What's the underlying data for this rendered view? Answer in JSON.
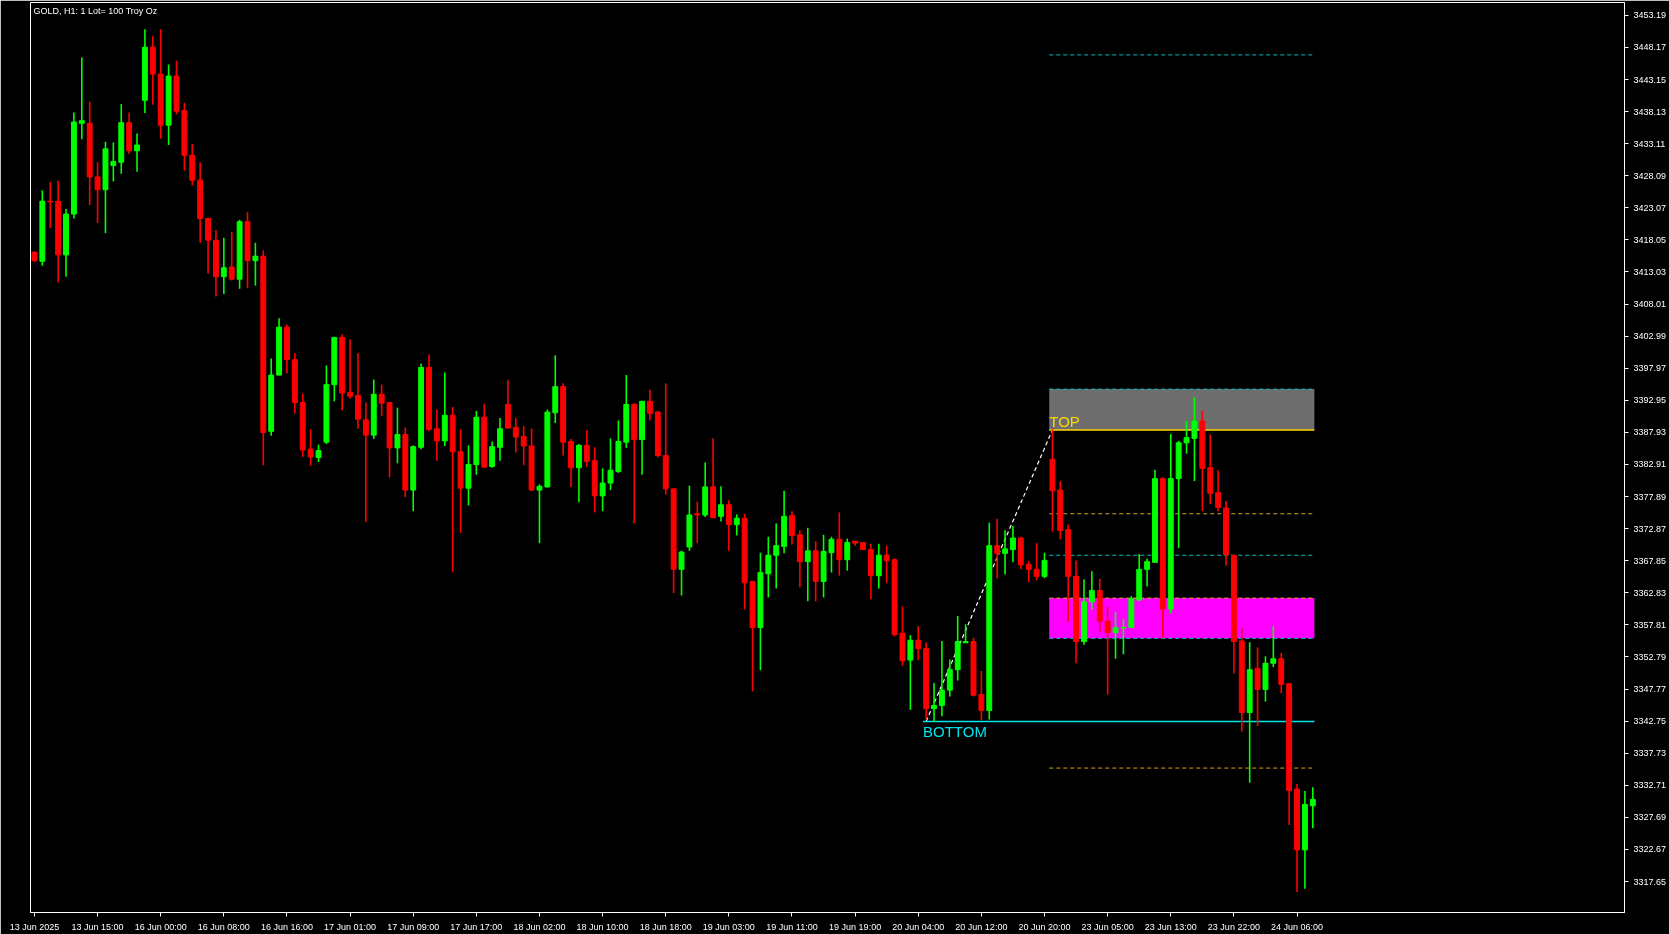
{
  "chart_data": {
    "type": "candlestick",
    "title": "GOLD, H1:  1 Lot= 100 Troy Oz",
    "categories": [
      "13 Jun 2025",
      null,
      null,
      null,
      null,
      null,
      null,
      null,
      "13 Jun 15:00",
      null,
      null,
      null,
      null,
      null,
      null,
      null,
      "16 Jun 00:00",
      null,
      null,
      null,
      null,
      null,
      null,
      null,
      "16 Jun 08:00",
      null,
      null,
      null,
      null,
      null,
      null,
      null,
      "16 Jun 16:00",
      null,
      null,
      null,
      null,
      null,
      null,
      null,
      "17 Jun 01:00",
      null,
      null,
      null,
      null,
      null,
      null,
      null,
      "17 Jun 09:00",
      null,
      null,
      null,
      null,
      null,
      null,
      null,
      "17 Jun 17:00",
      null,
      null,
      null,
      null,
      null,
      null,
      null,
      "18 Jun 02:00",
      null,
      null,
      null,
      null,
      null,
      null,
      null,
      "18 Jun 10:00",
      null,
      null,
      null,
      null,
      null,
      null,
      null,
      "18 Jun 18:00",
      null,
      null,
      null,
      null,
      null,
      null,
      null,
      "19 Jun 03:00",
      null,
      null,
      null,
      null,
      null,
      null,
      null,
      "19 Jun 11:00",
      null,
      null,
      null,
      null,
      null,
      null,
      null,
      "19 Jun 19:00",
      null,
      null,
      null,
      null,
      null,
      null,
      null,
      "20 Jun 04:00",
      null,
      null,
      null,
      null,
      null,
      null,
      null,
      "20 Jun 12:00",
      null,
      null,
      null,
      null,
      null,
      null,
      null,
      "20 Jun 20:00",
      null,
      null,
      null,
      null,
      null,
      null,
      null,
      "23 Jun 05:00",
      null,
      null,
      null,
      null,
      null,
      null,
      null,
      "23 Jun 13:00",
      null,
      null,
      null,
      null,
      null,
      null,
      null,
      "23 Jun 22:00",
      null,
      null,
      null,
      null,
      null,
      null,
      null,
      "24 Jun 06:00",
      null,
      null,
      null,
      null,
      null,
      null,
      null,
      null,
      null,
      null,
      null,
      null,
      null,
      null,
      null,
      null,
      null,
      null,
      null,
      null,
      null,
      null,
      null,
      null,
      null,
      null,
      null,
      null,
      null,
      null,
      null,
      null,
      null,
      null,
      null,
      null,
      null,
      null,
      null,
      null,
      null
    ],
    "ohlc": [
      [
        3416.1,
        3416.3,
        3414.6,
        3414.8
      ],
      [
        3414.7,
        3425.8,
        3414.0,
        3424.1
      ],
      [
        3424.1,
        3427.1,
        3419.9,
        3424.0
      ],
      [
        3424.1,
        3427.3,
        3411.4,
        3415.7
      ],
      [
        3415.7,
        3422.9,
        3412.3,
        3422.1
      ],
      [
        3422.1,
        3438.0,
        3421.4,
        3436.5
      ],
      [
        3436.3,
        3446.6,
        3433.8,
        3436.7
      ],
      [
        3436.3,
        3439.7,
        3423.5,
        3427.9
      ],
      [
        3427.9,
        3430.2,
        3420.7,
        3425.9
      ],
      [
        3425.9,
        3433.4,
        3419.1,
        3432.3
      ],
      [
        3429.7,
        3433.3,
        3427.2,
        3430.3
      ],
      [
        3430.2,
        3439.3,
        3428.4,
        3436.4
      ],
      [
        3436.4,
        3438.0,
        3431.5,
        3432.0
      ],
      [
        3432.0,
        3434.7,
        3428.7,
        3432.9
      ],
      [
        3439.9,
        3451.0,
        3437.9,
        3448.2
      ],
      [
        3448.2,
        3449.9,
        3439.2,
        3444.0
      ],
      [
        3444.0,
        3451.0,
        3433.9,
        3436.0
      ],
      [
        3436.0,
        3445.5,
        3432.9,
        3443.7
      ],
      [
        3443.7,
        3446.1,
        3437.7,
        3438.2
      ],
      [
        3438.3,
        3439.5,
        3428.9,
        3431.3
      ],
      [
        3431.3,
        3433.1,
        3426.6,
        3427.4
      ],
      [
        3427.4,
        3430.2,
        3417.6,
        3421.4
      ],
      [
        3421.4,
        3421.5,
        3412.8,
        3418.0
      ],
      [
        3418.0,
        3419.6,
        3409.2,
        3412.3
      ],
      [
        3412.3,
        3418.4,
        3409.6,
        3413.7
      ],
      [
        3413.8,
        3419.3,
        3411.7,
        3411.9
      ],
      [
        3411.9,
        3421.2,
        3410.4,
        3420.9
      ],
      [
        3420.9,
        3422.4,
        3410.5,
        3414.8
      ],
      [
        3414.8,
        3417.6,
        3410.9,
        3415.5
      ],
      [
        3415.5,
        3416.4,
        3382.8,
        3387.9
      ],
      [
        3388.1,
        3399.5,
        3387.4,
        3396.9
      ],
      [
        3396.9,
        3405.8,
        3396.9,
        3404.4
      ],
      [
        3404.4,
        3404.8,
        3397.2,
        3399.3
      ],
      [
        3399.3,
        3400.3,
        3390.9,
        3392.6
      ],
      [
        3392.6,
        3394.0,
        3384.1,
        3385.2
      ],
      [
        3385.3,
        3388.4,
        3382.7,
        3384.1
      ],
      [
        3384.0,
        3386.0,
        3383.3,
        3385.1
      ],
      [
        3386.4,
        3398.4,
        3386.1,
        3395.4
      ],
      [
        3395.4,
        3402.8,
        3392.8,
        3402.8
      ],
      [
        3402.8,
        3403.3,
        3391.4,
        3394.1
      ],
      [
        3394.2,
        3402.5,
        3393.2,
        3393.6
      ],
      [
        3393.7,
        3400.3,
        3388.5,
        3390.0
      ],
      [
        3389.9,
        3392.6,
        3373.9,
        3387.5
      ],
      [
        3387.5,
        3396.2,
        3386.9,
        3393.9
      ],
      [
        3393.9,
        3395.4,
        3390.5,
        3392.5
      ],
      [
        3392.6,
        3392.6,
        3380.9,
        3385.5
      ],
      [
        3385.5,
        3391.8,
        3383.1,
        3387.6
      ],
      [
        3387.6,
        3388.7,
        3377.8,
        3378.9
      ],
      [
        3378.9,
        3385.9,
        3375.6,
        3385.7
      ],
      [
        3385.6,
        3398.7,
        3385.3,
        3398.1
      ],
      [
        3398.1,
        3400.1,
        3388.1,
        3388.4
      ],
      [
        3388.5,
        3391.5,
        3383.5,
        3386.6
      ],
      [
        3386.6,
        3397.3,
        3385.8,
        3390.6
      ],
      [
        3390.6,
        3391.9,
        3366.1,
        3384.9
      ],
      [
        3384.9,
        3388.4,
        3372.2,
        3379.2
      ],
      [
        3379.2,
        3385.9,
        3376.5,
        3382.9
      ],
      [
        3382.9,
        3391.3,
        3381.3,
        3390.3
      ],
      [
        3390.3,
        3392.4,
        3382.4,
        3382.5
      ],
      [
        3382.6,
        3386.5,
        3382.4,
        3385.7
      ],
      [
        3385.6,
        3390.2,
        3383.5,
        3388.5
      ],
      [
        3392.3,
        3396.1,
        3388.6,
        3388.6
      ],
      [
        3388.7,
        3390.2,
        3384.8,
        3387.2
      ],
      [
        3387.3,
        3388.9,
        3382.8,
        3385.8
      ],
      [
        3385.8,
        3388.5,
        3378.8,
        3378.9
      ],
      [
        3378.9,
        3379.8,
        3370.6,
        3379.5
      ],
      [
        3379.4,
        3391.5,
        3379.3,
        3391.1
      ],
      [
        3391.0,
        3400.0,
        3389.4,
        3395.1
      ],
      [
        3395.1,
        3395.6,
        3384.3,
        3386.4
      ],
      [
        3386.5,
        3386.9,
        3379.4,
        3382.4
      ],
      [
        3382.4,
        3386.1,
        3377.0,
        3385.9
      ],
      [
        3385.9,
        3388.3,
        3382.5,
        3383.4
      ],
      [
        3383.5,
        3385.6,
        3375.4,
        3378.0
      ],
      [
        3378.0,
        3382.3,
        3375.6,
        3380.0
      ],
      [
        3380.0,
        3387.0,
        3378.9,
        3382.0
      ],
      [
        3381.8,
        3389.8,
        3381.6,
        3386.5
      ],
      [
        3386.4,
        3396.9,
        3385.5,
        3392.3
      ],
      [
        3392.3,
        3392.5,
        3373.7,
        3386.8
      ],
      [
        3386.8,
        3392.8,
        3381.3,
        3392.8
      ],
      [
        3392.8,
        3394.6,
        3389.8,
        3390.9
      ],
      [
        3391.1,
        3391.3,
        3384.0,
        3384.3
      ],
      [
        3384.3,
        3395.6,
        3378.2,
        3379.1
      ],
      [
        3379.1,
        3379.1,
        3362.8,
        3366.5
      ],
      [
        3366.5,
        3369.4,
        3362.4,
        3369.2
      ],
      [
        3370.0,
        3379.6,
        3369.4,
        3375.0
      ],
      [
        3375.2,
        3377.1,
        3370.6,
        3375.0
      ],
      [
        3375.0,
        3383.2,
        3374.7,
        3379.4
      ],
      [
        3379.4,
        3387.0,
        3374.5,
        3374.6
      ],
      [
        3374.8,
        3379.5,
        3374.0,
        3376.6
      ],
      [
        3376.6,
        3377.3,
        3369.4,
        3373.5
      ],
      [
        3373.5,
        3375.1,
        3371.8,
        3374.5
      ],
      [
        3374.5,
        3375.2,
        3360.2,
        3364.4
      ],
      [
        3364.6,
        3364.7,
        3347.4,
        3357.4
      ],
      [
        3357.4,
        3369.1,
        3350.7,
        3366.0
      ],
      [
        3365.8,
        3371.6,
        3362.1,
        3368.7
      ],
      [
        3368.7,
        3373.7,
        3363.5,
        3370.2
      ],
      [
        3370.1,
        3378.8,
        3369.0,
        3374.8
      ],
      [
        3374.9,
        3375.6,
        3370.4,
        3371.8
      ],
      [
        3371.9,
        3372.6,
        3363.7,
        3367.7
      ],
      [
        3367.7,
        3373.0,
        3361.5,
        3369.4
      ],
      [
        3369.4,
        3370.9,
        3361.5,
        3364.6
      ],
      [
        3364.6,
        3371.9,
        3362.1,
        3369.3
      ],
      [
        3369.1,
        3371.6,
        3366.0,
        3371.2
      ],
      [
        3371.2,
        3375.4,
        3365.5,
        3368.0
      ],
      [
        3368.0,
        3371.3,
        3366.3,
        3370.7
      ],
      [
        3370.9,
        3370.9,
        3370.2,
        3370.6
      ],
      [
        3370.7,
        3370.7,
        3369.6,
        3369.6
      ],
      [
        3369.6,
        3370.5,
        3361.8,
        3365.5
      ],
      [
        3365.5,
        3370.5,
        3363.5,
        3368.7
      ],
      [
        3368.7,
        3370.2,
        3364.4,
        3367.9
      ],
      [
        3368.0,
        3368.2,
        3356.0,
        3356.3
      ],
      [
        3356.5,
        3360.7,
        3351.4,
        3352.2
      ],
      [
        3352.3,
        3356.2,
        3344.5,
        3355.4
      ],
      [
        3355.4,
        3357.6,
        3352.3,
        3354.1
      ],
      [
        3354.1,
        3355.1,
        3343.0,
        3344.7
      ],
      [
        3344.7,
        3348.7,
        3342.6,
        3345.2
      ],
      [
        3345.2,
        3355.3,
        3343.5,
        3347.6
      ],
      [
        3347.6,
        3352.4,
        3346.6,
        3350.8
      ],
      [
        3350.8,
        3359.2,
        3349.1,
        3355.2
      ],
      [
        3355.0,
        3357.9,
        3355.0,
        3355.2
      ],
      [
        3355.2,
        3355.8,
        3346.6,
        3346.8
      ],
      [
        3346.9,
        3350.6,
        3342.9,
        3344.4
      ],
      [
        3344.4,
        3373.8,
        3343.0,
        3370.2
      ],
      [
        3370.2,
        3374.4,
        3365.1,
        3369.0
      ],
      [
        3369.0,
        3372.6,
        3365.7,
        3369.7
      ],
      [
        3369.6,
        3373.3,
        3367.6,
        3371.4
      ],
      [
        3371.4,
        3371.6,
        3366.5,
        3367.2
      ],
      [
        3367.3,
        3367.8,
        3364.5,
        3366.5
      ],
      [
        3366.5,
        3370.6,
        3364.8,
        3365.4
      ],
      [
        3365.4,
        3369.1,
        3365.1,
        3367.9
      ],
      [
        3383.7,
        3388.4,
        3372.4,
        3378.8
      ],
      [
        3378.9,
        3380.3,
        3371.2,
        3372.6
      ],
      [
        3372.7,
        3373.5,
        3358.3,
        3365.4
      ],
      [
        3365.4,
        3367.9,
        3351.8,
        3355.2
      ],
      [
        3355.2,
        3364.9,
        3354.7,
        3361.4
      ],
      [
        3361.4,
        3366.2,
        3360.2,
        3363.2
      ],
      [
        3363.2,
        3365.0,
        3356.7,
        3358.4
      ],
      [
        3358.4,
        3360.6,
        3346.9,
        3356.6
      ],
      [
        3356.6,
        3359.8,
        3352.5,
        3357.4
      ],
      [
        3357.3,
        3358.7,
        3353.2,
        3357.4
      ],
      [
        3357.4,
        3362.3,
        3357.4,
        3361.9
      ],
      [
        3361.7,
        3368.9,
        3361.5,
        3366.5
      ],
      [
        3366.5,
        3368.2,
        3363.8,
        3367.7
      ],
      [
        3367.6,
        3382.1,
        3367.6,
        3380.7
      ],
      [
        3380.7,
        3380.9,
        3355.8,
        3360.3
      ],
      [
        3360.3,
        3387.7,
        3359.6,
        3380.7
      ],
      [
        3380.7,
        3386.6,
        3369.8,
        3386.3
      ],
      [
        3386.3,
        3389.7,
        3384.6,
        3387.1
      ],
      [
        3387.0,
        3393.4,
        3380.3,
        3389.7
      ],
      [
        3389.7,
        3391.3,
        3375.6,
        3382.3
      ],
      [
        3382.4,
        3387.6,
        3376.7,
        3378.4
      ],
      [
        3378.5,
        3382.0,
        3375.6,
        3376.2
      ],
      [
        3376.1,
        3377.2,
        3367.1,
        3368.8
      ],
      [
        3368.7,
        3368.7,
        3350.2,
        3355.2
      ],
      [
        3355.3,
        3357.3,
        3341.1,
        3344.1
      ],
      [
        3344.1,
        3355.1,
        3333.1,
        3350.8
      ],
      [
        3351.0,
        3354.3,
        3342.0,
        3347.7
      ],
      [
        3347.7,
        3352.9,
        3345.8,
        3351.8
      ],
      [
        3351.8,
        3357.6,
        3351.2,
        3352.5
      ],
      [
        3352.5,
        3353.4,
        3347.1,
        3348.5
      ],
      [
        3348.6,
        3348.7,
        3326.5,
        3331.9
      ],
      [
        3332.1,
        3332.9,
        3316.0,
        3322.6
      ],
      [
        3322.6,
        3331.8,
        3316.5,
        3329.7
      ],
      [
        3329.5,
        3332.4,
        3326.0,
        3330.5
      ],
      null,
      null,
      null,
      null,
      null,
      null,
      null,
      null,
      null,
      null,
      null,
      null,
      null,
      null,
      null,
      null,
      null,
      null,
      null,
      null,
      null,
      null,
      null,
      null,
      null,
      null,
      null,
      null,
      null,
      null,
      null,
      null,
      null,
      null,
      null,
      null,
      null,
      null,
      null
    ],
    "colors": [
      "#ff0000",
      "#00ff00",
      "#ff0000",
      "#ff0000",
      "#00ff00",
      "#00ff00",
      "#00ff00",
      "#ff0000",
      "#ff0000",
      "#00ff00",
      "#00ff00",
      "#00ff00",
      "#ff0000",
      "#00ff00",
      "#00ff00",
      "#ff0000",
      "#ff0000",
      "#00ff00",
      "#ff0000",
      "#ff0000",
      "#ff0000",
      "#ff0000",
      "#ff0000",
      "#ff0000",
      "#00ff00",
      "#ff0000",
      "#00ff00",
      "#ff0000",
      "#00ff00",
      "#ff0000",
      "#00ff00",
      "#00ff00",
      "#ff0000",
      "#ff0000",
      "#ff0000",
      "#ff0000",
      "#00ff00",
      "#00ff00",
      "#00ff00",
      "#ff0000",
      "#ff0000",
      "#ff0000",
      "#ff0000",
      "#00ff00",
      "#ff0000",
      "#ff0000",
      "#00ff00",
      "#ff0000",
      "#00ff00",
      "#00ff00",
      "#ff0000",
      "#ff0000",
      "#00ff00",
      "#ff0000",
      "#ff0000",
      "#00ff00",
      "#00ff00",
      "#ff0000",
      "#00ff00",
      "#00ff00",
      "#ff0000",
      "#ff0000",
      "#ff0000",
      "#ff0000",
      "#00ff00",
      "#00ff00",
      "#00ff00",
      "#ff0000",
      "#ff0000",
      "#00ff00",
      "#ff0000",
      "#ff0000",
      "#00ff00",
      "#00ff00",
      "#00ff00",
      "#00ff00",
      "#ff0000",
      "#00ff00",
      "#ff0000",
      "#ff0000",
      "#ff0000",
      "#ff0000",
      "#00ff00",
      "#00ff00",
      "#ff0000",
      "#00ff00",
      "#ff0000",
      "#00ff00",
      "#ff0000",
      "#00ff00",
      "#ff0000",
      "#ff0000",
      "#00ff00",
      "#00ff00",
      "#00ff00",
      "#00ff00",
      "#ff0000",
      "#ff0000",
      "#00ff00",
      "#ff0000",
      "#00ff00",
      "#00ff00",
      "#ff0000",
      "#00ff00",
      "#ff0000",
      "#ff0000",
      "#ff0000",
      "#00ff00",
      "#ff0000",
      "#ff0000",
      "#ff0000",
      "#00ff00",
      "#ff0000",
      "#ff0000",
      "#00ff00",
      "#00ff00",
      "#00ff00",
      "#00ff00",
      "#00ff00",
      "#ff0000",
      "#ff0000",
      "#00ff00",
      "#ff0000",
      "#00ff00",
      "#00ff00",
      "#ff0000",
      "#ff0000",
      "#ff0000",
      "#00ff00",
      "#ff0000",
      "#ff0000",
      "#ff0000",
      "#ff0000",
      "#00ff00",
      "#00ff00",
      "#ff0000",
      "#ff0000",
      "#00ff00",
      "#00ff00",
      "#00ff00",
      "#00ff00",
      "#00ff00",
      "#00ff00",
      "#ff0000",
      "#00ff00",
      "#00ff00",
      "#00ff00",
      "#00ff00",
      "#ff0000",
      "#ff0000",
      "#ff0000",
      "#ff0000",
      "#ff0000",
      "#ff0000",
      "#00ff00",
      "#ff0000",
      "#00ff00",
      "#00ff00",
      "#ff0000",
      "#ff0000",
      "#ff0000",
      "#00ff00",
      "#00ff00",
      null,
      null,
      null,
      null,
      null,
      null,
      null,
      null,
      null,
      null,
      null,
      null,
      null,
      null,
      null,
      null,
      null,
      null,
      null,
      null,
      null,
      null,
      null,
      null,
      null,
      null,
      null,
      null,
      null,
      null,
      null,
      null,
      null,
      null,
      null,
      null,
      null,
      null,
      null
    ],
    "series": [
      {
        "type": "line",
        "color": "#ffffff",
        "line_style": "dashed",
        "values": [
          null,
          null,
          null,
          null,
          null,
          null,
          null,
          null,
          null,
          null,
          null,
          null,
          null,
          null,
          null,
          null,
          null,
          null,
          null,
          null,
          null,
          null,
          null,
          null,
          null,
          null,
          null,
          null,
          null,
          null,
          null,
          null,
          null,
          null,
          null,
          null,
          null,
          null,
          null,
          null,
          null,
          null,
          null,
          null,
          null,
          null,
          null,
          null,
          null,
          null,
          null,
          null,
          null,
          null,
          null,
          null,
          null,
          null,
          null,
          null,
          null,
          null,
          null,
          null,
          null,
          null,
          null,
          null,
          null,
          null,
          null,
          null,
          null,
          null,
          null,
          null,
          null,
          null,
          null,
          null,
          null,
          null,
          null,
          null,
          null,
          null,
          null,
          null,
          null,
          null,
          null,
          null,
          null,
          null,
          null,
          null,
          null,
          null,
          null,
          null,
          null,
          null,
          null,
          null,
          null,
          null,
          null,
          null,
          null,
          null,
          null,
          null,
          null,
          3342.7,
          null,
          null,
          null,
          null,
          null,
          null,
          null,
          null,
          null,
          null,
          null,
          null,
          null,
          null,
          null,
          3388.3,
          null,
          null,
          null,
          null,
          null,
          null,
          null,
          null,
          null,
          null,
          null,
          null,
          null,
          null,
          null,
          null,
          null,
          null,
          null,
          null,
          null,
          null,
          null,
          null,
          null,
          null,
          null,
          null,
          null,
          null,
          null,
          null,
          null,
          null,
          null,
          null,
          null,
          null,
          null,
          null,
          null,
          null,
          null,
          null,
          null,
          null,
          null,
          null,
          null,
          null,
          null,
          null,
          null,
          null,
          null,
          null,
          null,
          null,
          null,
          null,
          null,
          null,
          null,
          null,
          null,
          null,
          null,
          null,
          null,
          null,
          null,
          null
        ]
      }
    ],
    "ylim": [
      3312.8,
      3455.2
    ],
    "yticks": [
      3317.65,
      3322.67,
      3327.69,
      3332.71,
      3337.73,
      3342.75,
      3347.77,
      3352.79,
      3357.81,
      3362.83,
      3367.85,
      3372.87,
      3377.89,
      3382.91,
      3387.93,
      3392.95,
      3397.97,
      3402.99,
      3408.01,
      3413.03,
      3418.05,
      3423.07,
      3428.09,
      3433.11,
      3438.13,
      3443.15,
      3448.17,
      3453.19
    ],
    "ref_lines": [
      {
        "axis": "y",
        "value": 3447.0,
        "color": "#00bfbf",
        "line_style": "dashed"
      },
      {
        "axis": "y",
        "value": 3394.7,
        "color": "#00bfbf",
        "line_style": "dashed"
      },
      {
        "axis": "y",
        "value": 3388.3,
        "color": "#ffd700",
        "line_style": "solid",
        "label": "TOP"
      },
      {
        "axis": "y",
        "value": 3375.2,
        "color": "#d4a017",
        "line_style": "dashed"
      },
      {
        "axis": "y",
        "value": 3368.7,
        "color": "#00bfbf",
        "line_style": "dashed"
      },
      {
        "axis": "y",
        "value": 3362.0,
        "color": "#d4a017",
        "line_style": "dashed"
      },
      {
        "axis": "y",
        "value": 3355.7,
        "color": "#00bfbf",
        "line_style": "dashed"
      },
      {
        "axis": "y",
        "value": 3342.7,
        "color": "#00e5ee",
        "line_style": "solid",
        "label": "BOTTOM"
      },
      {
        "axis": "y",
        "value": 3335.4,
        "color": "#d4a017",
        "line_style": "dashed"
      }
    ],
    "bands": [
      {
        "axis": "y",
        "from": 3388.3,
        "to": 3394.7,
        "color": "#6e6e6e"
      },
      {
        "axis": "y",
        "from": 3355.7,
        "to": 3362.0,
        "color": "#ff00ff"
      }
    ],
    "grid": false
  }
}
